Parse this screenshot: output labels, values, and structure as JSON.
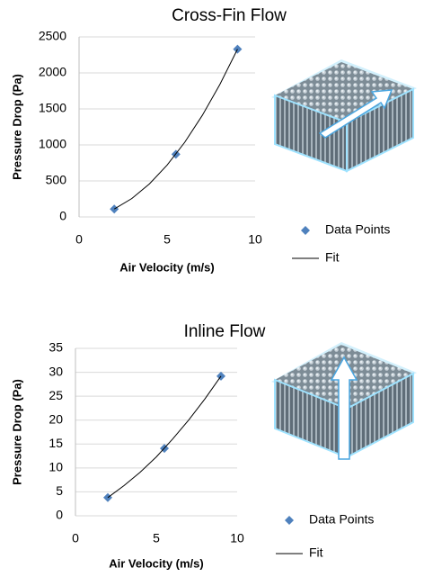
{
  "chart_data": [
    {
      "type": "scatter",
      "title": "Cross-Fin Flow",
      "xlabel": "Air Velocity (m/s)",
      "ylabel": "Pressure Drop (Pa)",
      "xlim": [
        0,
        10
      ],
      "xticks": [
        0,
        5,
        10
      ],
      "ylim": [
        0,
        2500
      ],
      "yticks": [
        0,
        500,
        1000,
        1500,
        2000,
        2500
      ],
      "grid": true,
      "series": [
        {
          "name": "Data Points",
          "color": "#4f81bd",
          "x": [
            2,
            5.5,
            9
          ],
          "values": [
            110,
            870,
            2330
          ]
        },
        {
          "name": "Fit",
          "color": "#000000",
          "x": [
            2,
            3,
            4,
            5,
            6,
            7,
            8,
            9
          ],
          "values": [
            110,
            256,
            459,
            719,
            1036,
            1410,
            1841,
            2330
          ]
        }
      ]
    },
    {
      "type": "scatter",
      "title": "Inline Flow",
      "xlabel": "Air Velocity (m/s)",
      "ylabel": "Pressure Drop (Pa)",
      "xlim": [
        0,
        10
      ],
      "xticks": [
        0,
        5,
        10
      ],
      "ylim": [
        0,
        35
      ],
      "yticks": [
        0,
        5,
        10,
        15,
        20,
        25,
        30,
        35
      ],
      "grid": true,
      "series": [
        {
          "name": "Data Points",
          "color": "#4f81bd",
          "x": [
            2,
            5.5,
            9
          ],
          "values": [
            3.8,
            14.1,
            29.2
          ]
        },
        {
          "name": "Fit",
          "color": "#000000",
          "x": [
            2,
            3,
            4,
            5,
            6,
            7,
            8,
            9
          ],
          "values": [
            3.8,
            6.3,
            9.1,
            12.3,
            16.0,
            20.0,
            24.4,
            29.2
          ]
        }
      ]
    }
  ]
}
